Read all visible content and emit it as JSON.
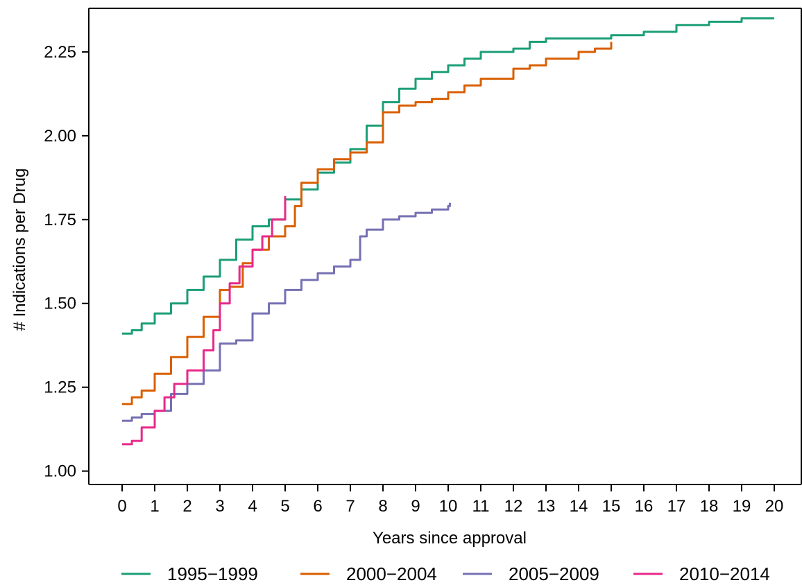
{
  "chart_data": {
    "type": "line",
    "title": "",
    "xlabel": "Years since approval",
    "ylabel": "# Indications per Drug",
    "xlim": [
      0,
      20
    ],
    "ylim": [
      0.96,
      2.38
    ],
    "x_ticks": [
      0,
      1,
      2,
      3,
      4,
      5,
      6,
      7,
      8,
      9,
      10,
      11,
      12,
      13,
      14,
      15,
      16,
      17,
      18,
      19,
      20
    ],
    "y_ticks": [
      1.0,
      1.25,
      1.5,
      1.75,
      2.0,
      2.25
    ],
    "y_tick_labels": [
      "1.00",
      "1.25",
      "1.50",
      "1.75",
      "2.00",
      "2.25"
    ],
    "x_tick_labels": [
      "0",
      "1",
      "2",
      "3",
      "4",
      "5",
      "6",
      "7",
      "8",
      "9",
      "10",
      "11",
      "12",
      "13",
      "14",
      "15",
      "16",
      "17",
      "18",
      "19",
      "20"
    ],
    "grid": false,
    "legend_position": "bottom",
    "series": [
      {
        "name": "1995−1999",
        "color": "#1b9e77",
        "points": [
          [
            0,
            1.41
          ],
          [
            0.3,
            1.42
          ],
          [
            0.6,
            1.44
          ],
          [
            1.0,
            1.47
          ],
          [
            1.5,
            1.5
          ],
          [
            2.0,
            1.54
          ],
          [
            2.5,
            1.58
          ],
          [
            3.0,
            1.63
          ],
          [
            3.5,
            1.69
          ],
          [
            4.0,
            1.73
          ],
          [
            4.5,
            1.75
          ],
          [
            5.0,
            1.81
          ],
          [
            5.5,
            1.84
          ],
          [
            6.0,
            1.89
          ],
          [
            6.5,
            1.92
          ],
          [
            7.0,
            1.96
          ],
          [
            7.5,
            2.03
          ],
          [
            8.0,
            2.1
          ],
          [
            8.5,
            2.14
          ],
          [
            9.0,
            2.17
          ],
          [
            9.5,
            2.19
          ],
          [
            10.0,
            2.21
          ],
          [
            10.5,
            2.23
          ],
          [
            11.0,
            2.25
          ],
          [
            12.0,
            2.26
          ],
          [
            12.5,
            2.28
          ],
          [
            13.0,
            2.29
          ],
          [
            14.0,
            2.29
          ],
          [
            15.0,
            2.3
          ],
          [
            16.0,
            2.31
          ],
          [
            17.0,
            2.33
          ],
          [
            18.0,
            2.34
          ],
          [
            19.0,
            2.35
          ],
          [
            20.0,
            2.35
          ]
        ]
      },
      {
        "name": "2000−2004",
        "color": "#d95f02",
        "points": [
          [
            0,
            1.2
          ],
          [
            0.3,
            1.22
          ],
          [
            0.6,
            1.24
          ],
          [
            1.0,
            1.29
          ],
          [
            1.5,
            1.34
          ],
          [
            2.0,
            1.4
          ],
          [
            2.5,
            1.46
          ],
          [
            3.0,
            1.54
          ],
          [
            3.3,
            1.55
          ],
          [
            3.7,
            1.62
          ],
          [
            4.0,
            1.66
          ],
          [
            4.5,
            1.7
          ],
          [
            5.0,
            1.73
          ],
          [
            5.3,
            1.79
          ],
          [
            5.5,
            1.86
          ],
          [
            6.0,
            1.9
          ],
          [
            6.5,
            1.93
          ],
          [
            7.0,
            1.95
          ],
          [
            7.5,
            1.98
          ],
          [
            8.0,
            2.07
          ],
          [
            8.5,
            2.09
          ],
          [
            9.0,
            2.1
          ],
          [
            9.5,
            2.11
          ],
          [
            10.0,
            2.13
          ],
          [
            10.5,
            2.15
          ],
          [
            11.0,
            2.17
          ],
          [
            12.0,
            2.2
          ],
          [
            12.5,
            2.21
          ],
          [
            13.0,
            2.23
          ],
          [
            14.0,
            2.25
          ],
          [
            14.5,
            2.26
          ],
          [
            15.0,
            2.28
          ]
        ]
      },
      {
        "name": "2005−2009",
        "color": "#7570b3",
        "points": [
          [
            0,
            1.15
          ],
          [
            0.3,
            1.16
          ],
          [
            0.6,
            1.17
          ],
          [
            1.0,
            1.18
          ],
          [
            1.5,
            1.23
          ],
          [
            2.0,
            1.26
          ],
          [
            2.5,
            1.3
          ],
          [
            3.0,
            1.38
          ],
          [
            3.5,
            1.39
          ],
          [
            4.0,
            1.47
          ],
          [
            4.5,
            1.5
          ],
          [
            5.0,
            1.54
          ],
          [
            5.5,
            1.57
          ],
          [
            6.0,
            1.59
          ],
          [
            6.5,
            1.61
          ],
          [
            7.0,
            1.63
          ],
          [
            7.3,
            1.7
          ],
          [
            7.5,
            1.72
          ],
          [
            8.0,
            1.75
          ],
          [
            8.5,
            1.76
          ],
          [
            9.0,
            1.77
          ],
          [
            9.5,
            1.78
          ],
          [
            10.0,
            1.79
          ],
          [
            10.05,
            1.8
          ]
        ]
      },
      {
        "name": "2010−2014",
        "color": "#e7298a",
        "points": [
          [
            0,
            1.08
          ],
          [
            0.3,
            1.09
          ],
          [
            0.6,
            1.13
          ],
          [
            1.0,
            1.18
          ],
          [
            1.3,
            1.22
          ],
          [
            1.6,
            1.26
          ],
          [
            2.0,
            1.3
          ],
          [
            2.5,
            1.36
          ],
          [
            2.8,
            1.42
          ],
          [
            3.0,
            1.5
          ],
          [
            3.3,
            1.56
          ],
          [
            3.6,
            1.61
          ],
          [
            4.0,
            1.66
          ],
          [
            4.3,
            1.7
          ],
          [
            4.6,
            1.75
          ],
          [
            5.0,
            1.82
          ]
        ]
      }
    ]
  }
}
